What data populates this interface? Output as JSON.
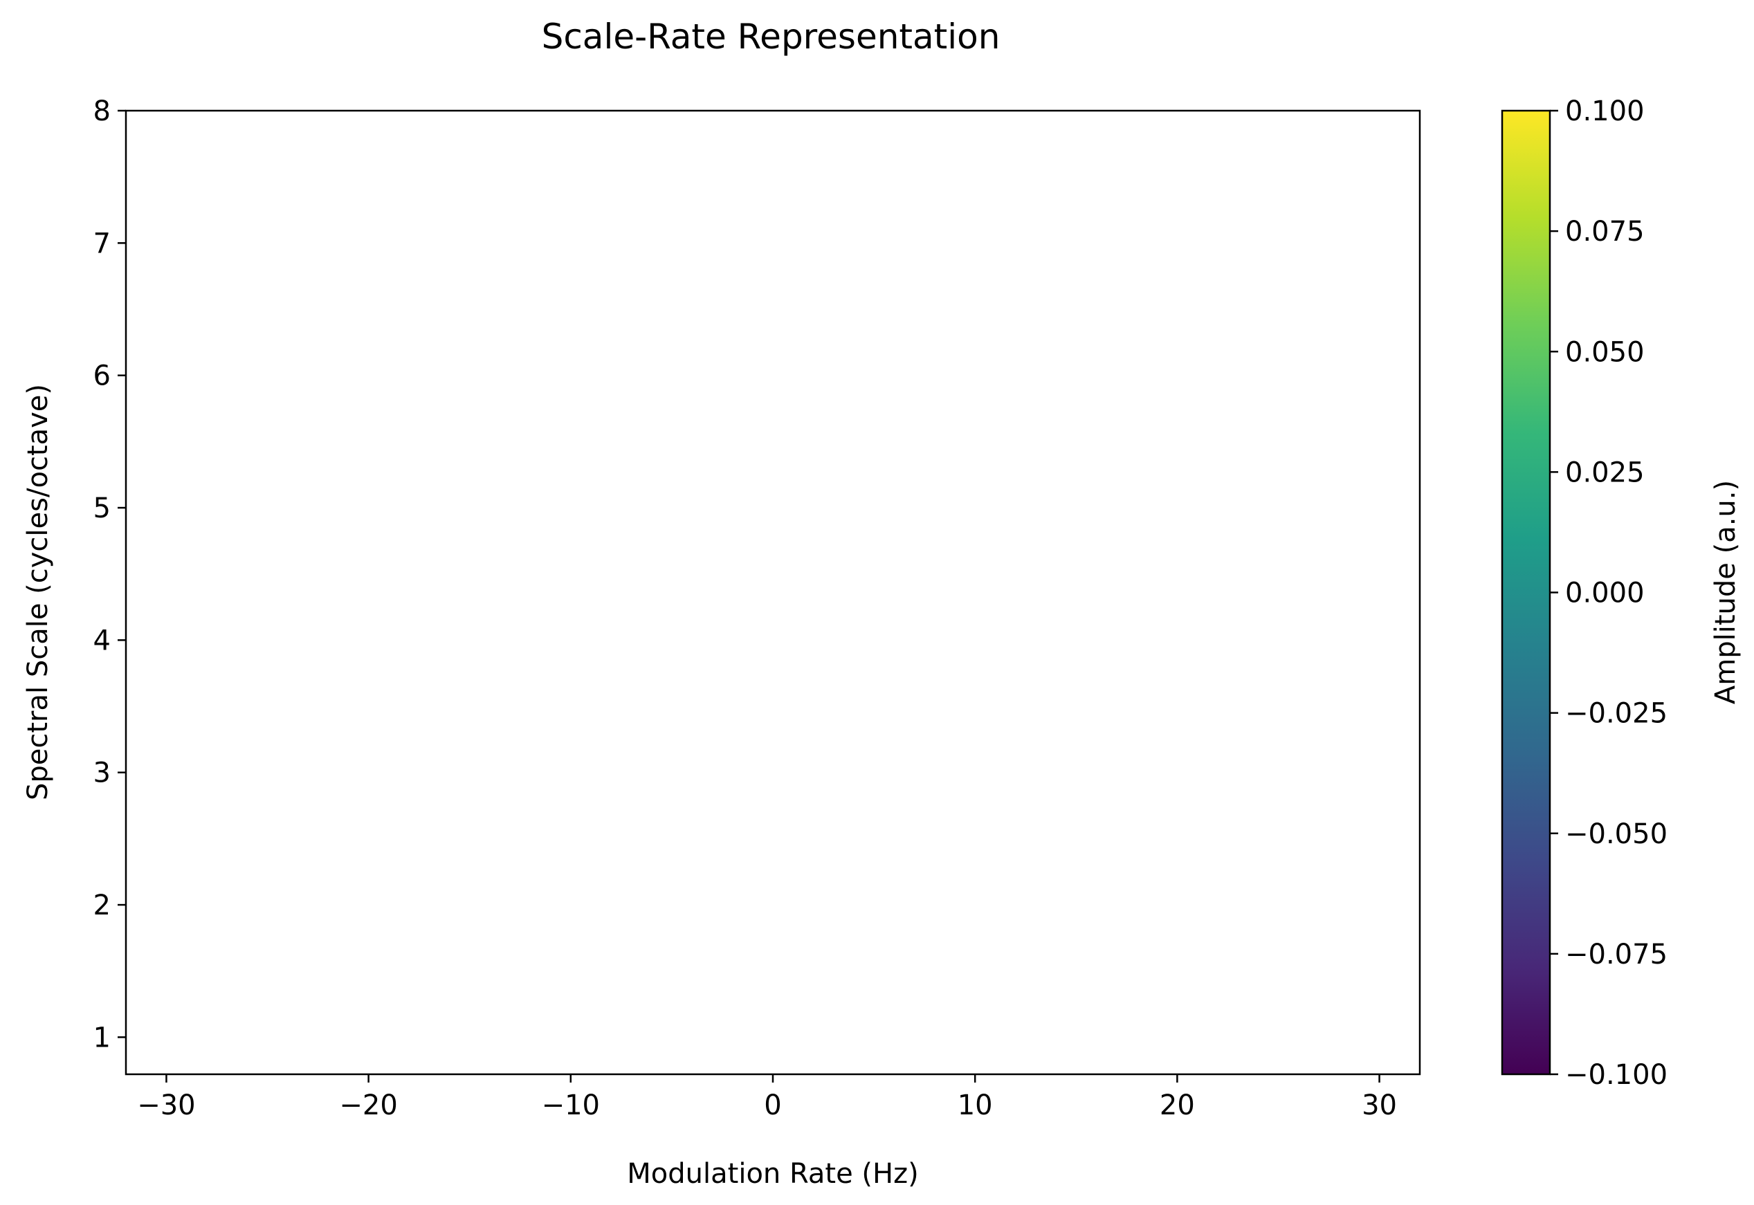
{
  "chart_data": {
    "type": "heatmap",
    "title": "Scale-Rate Representation",
    "xlabel": "Modulation Rate (Hz)",
    "ylabel": "Spectral Scale (cycles/octave)",
    "xlim": [
      -32,
      32
    ],
    "ylim": [
      0.72,
      8
    ],
    "xticks": [
      -30,
      -20,
      -10,
      0,
      10,
      20,
      30
    ],
    "xtick_labels": [
      "−30",
      "−20",
      "−10",
      "0",
      "10",
      "20",
      "30"
    ],
    "yticks": [
      1,
      2,
      3,
      4,
      5,
      6,
      7,
      8
    ],
    "ytick_labels": [
      "1",
      "2",
      "3",
      "4",
      "5",
      "6",
      "7",
      "8"
    ],
    "values": [],
    "grid": false,
    "colorbar": {
      "label": "Amplitude (a.u.)",
      "colormap": "viridis",
      "range": [
        -0.1,
        0.1
      ],
      "ticks": [
        -0.1,
        -0.075,
        -0.05,
        -0.025,
        0,
        0.025,
        0.05,
        0.075,
        0.1
      ],
      "tick_labels": [
        "−0.100",
        "−0.075",
        "−0.050",
        "−0.025",
        "0.000",
        "0.025",
        "0.050",
        "0.075",
        "0.100"
      ]
    }
  },
  "colors": {
    "viridis_stops": [
      "#440154",
      "#482878",
      "#3e4989",
      "#31688e",
      "#26828e",
      "#1f9e89",
      "#35b779",
      "#6ece58",
      "#b5de2b",
      "#fde725"
    ],
    "axis": "#000000",
    "background": "#ffffff"
  }
}
